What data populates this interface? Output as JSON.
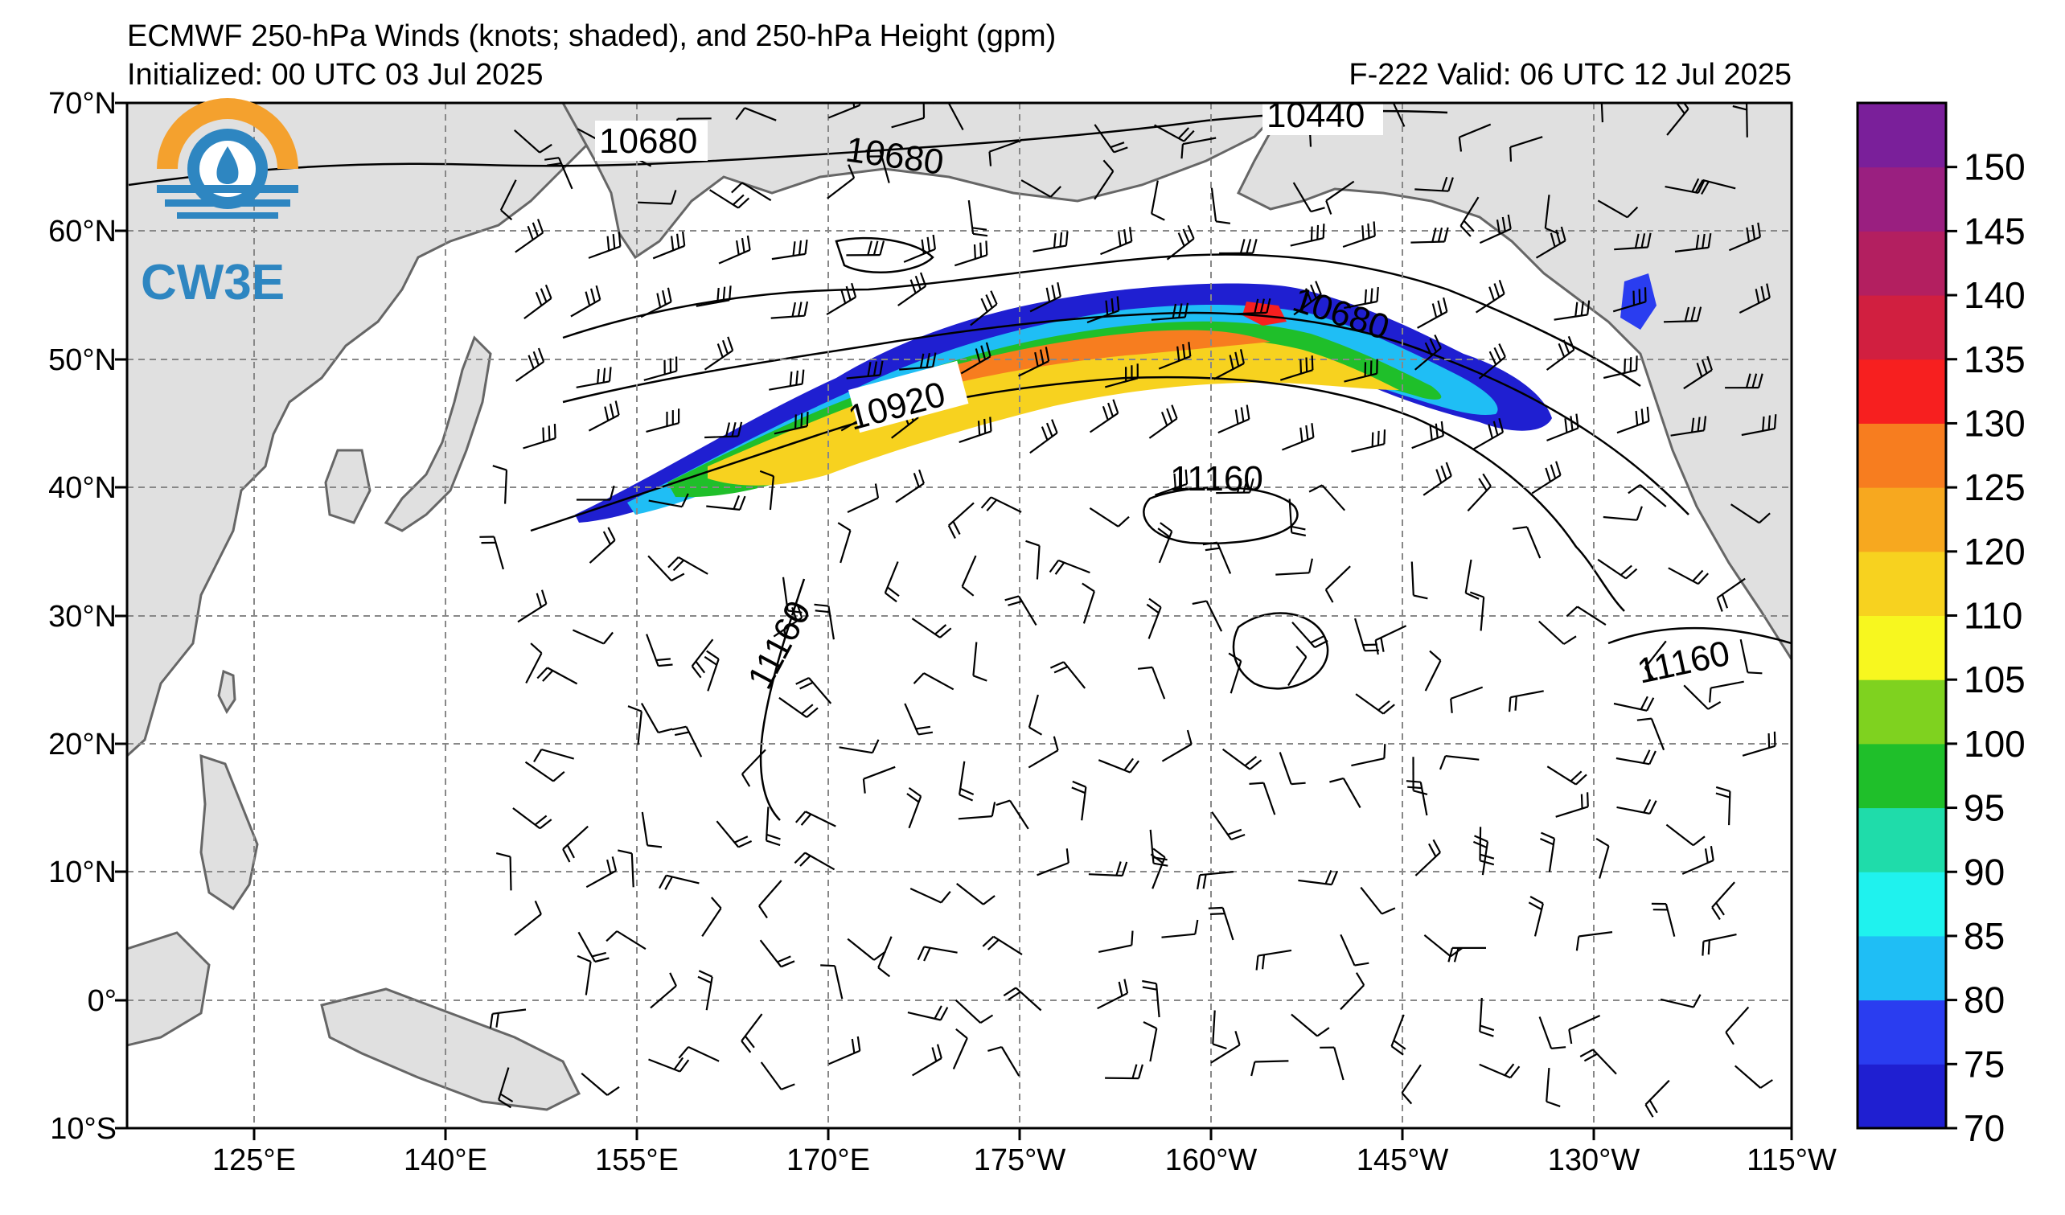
{
  "header": {
    "title_line1": "ECMWF 250-hPa Winds (knots; shaded), and 250-hPa Height (gpm)",
    "title_line2": "Initialized: 00 UTC 03 Jul 2025",
    "valid": "F-222  Valid: 06 UTC 12 Jul 2025"
  },
  "logo": {
    "text": "CW3E",
    "icon": "cw3e-logo-icon"
  },
  "axes": {
    "lon_ticks": [
      "125°E",
      "140°E",
      "155°E",
      "170°E",
      "175°W",
      "160°W",
      "145°W",
      "130°W",
      "115°W"
    ],
    "lat_ticks": [
      "70°N",
      "60°N",
      "50°N",
      "40°N",
      "30°N",
      "20°N",
      "10°N",
      "0°",
      "10°S"
    ],
    "lat_range": [
      -10,
      70
    ],
    "lon_range": [
      "110°E",
      "115°W"
    ],
    "grid": true
  },
  "contour_labels": [
    "10680",
    "10680",
    "10440",
    "10680",
    "10920",
    "11160",
    "11160",
    "11160"
  ],
  "colorbar": {
    "labels": [
      "70",
      "75",
      "80",
      "85",
      "90",
      "95",
      "100",
      "105",
      "110",
      "120",
      "125",
      "130",
      "135",
      "140",
      "145",
      "150"
    ],
    "colors": [
      "#1f1fd1",
      "#2a3df0",
      "#1fbef5",
      "#1ff2ee",
      "#1fdcaa",
      "#1fbf2a",
      "#7fd21f",
      "#f7f71f",
      "#f7d21f",
      "#f7a81f",
      "#f77d1f",
      "#f71f1f",
      "#d11f40",
      "#b31f60",
      "#9a1f80",
      "#7a1f9a"
    ]
  },
  "chart_data": {
    "type": "map",
    "field": "250-hPa wind speed (knots) shaded, 250-hPa geopotential height contours (gpm), wind barbs",
    "height_contours_gpm": [
      10440,
      10680,
      10920,
      11160
    ],
    "wind_shading_min_knots": 70,
    "wind_shading_max_knots": 150
  }
}
